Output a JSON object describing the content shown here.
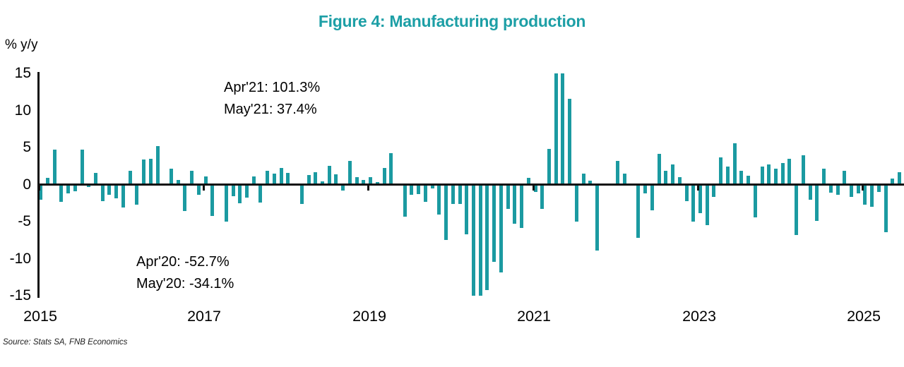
{
  "title": "Figure 4: Manufacturing production",
  "y_axis_unit": "% y/y",
  "source_note": "Source: Stats SA, FNB Economics",
  "colors": {
    "bar": "#1b9aa1",
    "title": "#1d9fa6",
    "axis": "#111111",
    "text": "#000000"
  },
  "annotations": {
    "top": {
      "line1": "Apr'21: 101.3%",
      "line2": "May'21: 37.4%"
    },
    "bottom": {
      "line1": "Apr'20: -52.7%",
      "line2": "May'20: -34.1%"
    }
  },
  "axes": {
    "y_ticks": [
      "15",
      "10",
      "5",
      "0",
      "-5",
      "-10",
      "-15"
    ],
    "x_ticks": [
      "2015",
      "2017",
      "2019",
      "2021",
      "2023",
      "2025"
    ]
  },
  "chart_data": {
    "type": "bar",
    "title": "Figure 4: Manufacturing production",
    "xlabel": "",
    "ylabel": "% y/y",
    "frequency": "monthly",
    "start": "2015-01",
    "end": "2025-06",
    "ylim": [
      -15,
      15
    ],
    "values_clipped_to_ylim": true,
    "outlier_callouts": [
      {
        "month": "2020-04",
        "value": -52.7
      },
      {
        "month": "2020-05",
        "value": -34.1
      },
      {
        "month": "2021-04",
        "value": 101.3
      },
      {
        "month": "2021-05",
        "value": 37.4
      }
    ],
    "values": [
      -2.0,
      0.9,
      4.7,
      -2.3,
      -1.2,
      -0.9,
      4.7,
      -0.3,
      1.6,
      -2.2,
      -1.4,
      -1.9,
      -3.1,
      1.9,
      -2.7,
      3.4,
      3.5,
      5.2,
      0.0,
      2.1,
      0.6,
      -3.6,
      1.9,
      -1.4,
      1.1,
      -4.2,
      0.0,
      -5.0,
      -1.6,
      -2.5,
      -1.8,
      1.1,
      -2.4,
      1.9,
      1.5,
      2.2,
      1.6,
      0.0,
      -2.6,
      1.3,
      1.7,
      0.4,
      2.5,
      1.4,
      -0.8,
      3.2,
      1.0,
      0.6,
      1.0,
      0.3,
      2.2,
      4.2,
      0.0,
      -4.3,
      -1.4,
      -1.3,
      -2.3,
      -0.5,
      -4.0,
      -7.5,
      -2.6,
      -2.6,
      -6.7,
      -52.7,
      -34.1,
      -14.2,
      -10.4,
      -11.9,
      -3.3,
      -5.3,
      -5.9,
      0.9,
      -1.0,
      -3.3,
      4.8,
      101.3,
      37.4,
      11.6,
      -5.0,
      1.5,
      0.5,
      -8.9,
      0.0,
      0.0,
      3.2,
      1.5,
      0.0,
      -7.2,
      -1.2,
      -3.5,
      4.1,
      1.9,
      2.7,
      1.0,
      -2.2,
      -5.0,
      -3.9,
      -5.5,
      -1.7,
      3.7,
      2.4,
      5.6,
      1.9,
      1.2,
      -4.4,
      2.4,
      2.7,
      2.1,
      2.9,
      3.5,
      -6.8,
      4.0,
      -2.0,
      -4.9,
      2.1,
      -1.1,
      -1.4,
      1.9,
      -1.7,
      -1.2,
      -2.7,
      -3.0,
      -1.0,
      -6.4,
      0.8,
      1.7
    ]
  }
}
